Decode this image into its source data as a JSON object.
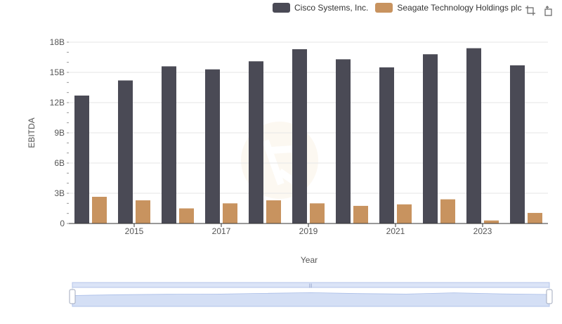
{
  "legend": {
    "series_0": "Cisco Systems, Inc.",
    "series_1": "Seagate Technology Holdings plc"
  },
  "toolbox": {
    "zoom_icon": "zoom-icon",
    "reset_icon": "restore-icon"
  },
  "colors": {
    "series_0": "#4a4a55",
    "series_1": "#c8935f",
    "grid": "#e6e6e6",
    "axis": "#333333",
    "slider_fill": "#dbe4f7",
    "slider_border": "#b5c5ea"
  },
  "chart_data": {
    "type": "bar",
    "title": "",
    "xlabel": "Year",
    "ylabel": "EBITDA",
    "ylim": [
      0,
      18000000000
    ],
    "yticks": [
      0,
      3000000000,
      6000000000,
      9000000000,
      12000000000,
      15000000000,
      18000000000
    ],
    "ytick_labels": [
      "0",
      "3B",
      "6B",
      "9B",
      "12B",
      "15B",
      "18B"
    ],
    "categories": [
      "2014",
      "2015",
      "2016",
      "2017",
      "2018",
      "2019",
      "2020",
      "2021",
      "2022",
      "2023",
      "2024"
    ],
    "xtick_labels": [
      "2015",
      "2017",
      "2019",
      "2021",
      "2023"
    ],
    "series": [
      {
        "name": "Cisco Systems, Inc.",
        "values": [
          12700000000,
          14200000000,
          15600000000,
          15300000000,
          16100000000,
          17300000000,
          16300000000,
          15500000000,
          16800000000,
          17400000000,
          15700000000
        ]
      },
      {
        "name": "Seagate Technology Holdings plc",
        "values": [
          2650000000,
          2300000000,
          1500000000,
          2000000000,
          2300000000,
          2000000000,
          1750000000,
          1900000000,
          2400000000,
          300000000,
          1050000000
        ]
      }
    ],
    "grid": true,
    "legend_position": "top-right",
    "data_zoom": true
  }
}
